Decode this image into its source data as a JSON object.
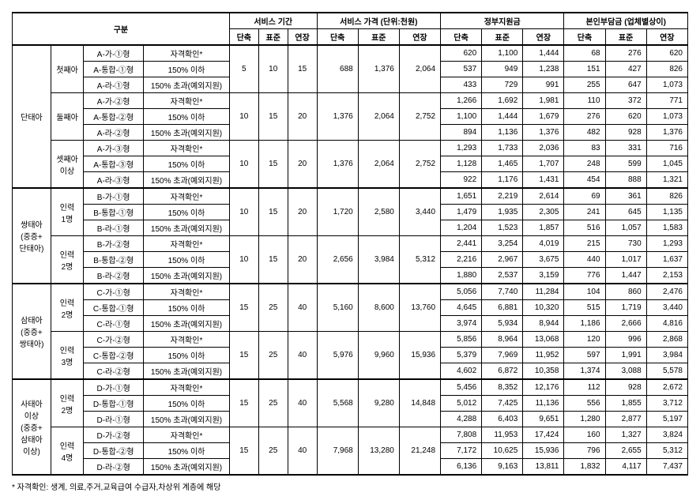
{
  "header": {
    "gubun": "구분",
    "period": "서비스 기간",
    "price": "서비스 가격 (단위:천원)",
    "gov": "정부지원금",
    "self": "본인부담금 (업체별상이)",
    "short": "단축",
    "std": "표준",
    "ext": "연장"
  },
  "cat": {
    "dan": "단태아",
    "ssang": "쌍태아",
    "ssang_sub": "(중증+\n단태아)",
    "sam": "삼태아",
    "sam_sub": "(중증+\n쌍태아)",
    "sa": "사태아\n이상",
    "sa_sub": "(중증+\n삼태아\n이상)"
  },
  "sub": {
    "first": "첫째아",
    "second": "둘째아",
    "third": "셋째아\n이상",
    "p1": "인력\n1명",
    "p2": "인력\n2명",
    "p3": "인력\n3명",
    "p4": "인력\n4명"
  },
  "type": {
    "a1a": "A-가-①형",
    "a1b": "A-통합-①형",
    "a1c": "A-라-①형",
    "a2a": "A-가-②형",
    "a2b": "A-통합-②형",
    "a2c": "A-라-②형",
    "a3a": "A-가-③형",
    "a3b": "A-통합-③형",
    "a3c": "A-라-③형",
    "b1a": "B-가-①형",
    "b1b": "B-통합-①형",
    "b1c": "B-라-①형",
    "b2a": "B-가-②형",
    "b2b": "B-통합-②형",
    "b2c": "B-라-②형",
    "c1a": "C-가-①형",
    "c1b": "C-통합-①형",
    "c1c": "C-라-①형",
    "c2a": "C-가-②형",
    "c2b": "C-통합-②형",
    "c2c": "C-라-②형",
    "d1a": "D-가-①형",
    "d1b": "D-통합-①형",
    "d1c": "D-라-①형",
    "d2a": "D-가-②형",
    "d2b": "D-통합-②형",
    "d2c": "D-라-②형"
  },
  "crit": {
    "qual": "자격확인*",
    "under": "150% 이하",
    "over": "150% 초과(예외지원)"
  },
  "rows": [
    {
      "per": [
        "5",
        "10",
        "15"
      ],
      "price": [
        "688",
        "1,376",
        "2,064"
      ],
      "gov": [
        "620",
        "1,100",
        "1,444"
      ],
      "self": [
        "68",
        "276",
        "620"
      ]
    },
    {
      "gov": [
        "537",
        "949",
        "1,238"
      ],
      "self": [
        "151",
        "427",
        "826"
      ]
    },
    {
      "gov": [
        "433",
        "729",
        "991"
      ],
      "self": [
        "255",
        "647",
        "1,073"
      ]
    },
    {
      "per": [
        "10",
        "15",
        "20"
      ],
      "price": [
        "1,376",
        "2,064",
        "2,752"
      ],
      "gov": [
        "1,266",
        "1,692",
        "1,981"
      ],
      "self": [
        "110",
        "372",
        "771"
      ]
    },
    {
      "gov": [
        "1,100",
        "1,444",
        "1,679"
      ],
      "self": [
        "276",
        "620",
        "1,073"
      ]
    },
    {
      "gov": [
        "894",
        "1,136",
        "1,376"
      ],
      "self": [
        "482",
        "928",
        "1,376"
      ]
    },
    {
      "per": [
        "10",
        "15",
        "20"
      ],
      "price": [
        "1,376",
        "2,064",
        "2,752"
      ],
      "gov": [
        "1,293",
        "1,733",
        "2,036"
      ],
      "self": [
        "83",
        "331",
        "716"
      ]
    },
    {
      "gov": [
        "1,128",
        "1,465",
        "1,707"
      ],
      "self": [
        "248",
        "599",
        "1,045"
      ]
    },
    {
      "gov": [
        "922",
        "1,176",
        "1,431"
      ],
      "self": [
        "454",
        "888",
        "1,321"
      ]
    },
    {
      "per": [
        "10",
        "15",
        "20"
      ],
      "price": [
        "1,720",
        "2,580",
        "3,440"
      ],
      "gov": [
        "1,651",
        "2,219",
        "2,614"
      ],
      "self": [
        "69",
        "361",
        "826"
      ]
    },
    {
      "gov": [
        "1,479",
        "1,935",
        "2,305"
      ],
      "self": [
        "241",
        "645",
        "1,135"
      ]
    },
    {
      "gov": [
        "1,204",
        "1,523",
        "1,857"
      ],
      "self": [
        "516",
        "1,057",
        "1,583"
      ]
    },
    {
      "per": [
        "10",
        "15",
        "20"
      ],
      "price": [
        "2,656",
        "3,984",
        "5,312"
      ],
      "gov": [
        "2,441",
        "3,254",
        "4,019"
      ],
      "self": [
        "215",
        "730",
        "1,293"
      ]
    },
    {
      "gov": [
        "2,216",
        "2,967",
        "3,675"
      ],
      "self": [
        "440",
        "1,017",
        "1,637"
      ]
    },
    {
      "gov": [
        "1,880",
        "2,537",
        "3,159"
      ],
      "self": [
        "776",
        "1,447",
        "2,153"
      ]
    },
    {
      "per": [
        "15",
        "25",
        "40"
      ],
      "price": [
        "5,160",
        "8,600",
        "13,760"
      ],
      "gov": [
        "5,056",
        "7,740",
        "11,284"
      ],
      "self": [
        "104",
        "860",
        "2,476"
      ]
    },
    {
      "gov": [
        "4,645",
        "6,881",
        "10,320"
      ],
      "self": [
        "515",
        "1,719",
        "3,440"
      ]
    },
    {
      "gov": [
        "3,974",
        "5,934",
        "8,944"
      ],
      "self": [
        "1,186",
        "2,666",
        "4,816"
      ]
    },
    {
      "per": [
        "15",
        "25",
        "40"
      ],
      "price": [
        "5,976",
        "9,960",
        "15,936"
      ],
      "gov": [
        "5,856",
        "8,964",
        "13,068"
      ],
      "self": [
        "120",
        "996",
        "2,868"
      ]
    },
    {
      "gov": [
        "5,379",
        "7,969",
        "11,952"
      ],
      "self": [
        "597",
        "1,991",
        "3,984"
      ]
    },
    {
      "gov": [
        "4,602",
        "6,872",
        "10,358"
      ],
      "self": [
        "1,374",
        "3,088",
        "5,578"
      ]
    },
    {
      "per": [
        "15",
        "25",
        "40"
      ],
      "price": [
        "5,568",
        "9,280",
        "14,848"
      ],
      "gov": [
        "5,456",
        "8,352",
        "12,176"
      ],
      "self": [
        "112",
        "928",
        "2,672"
      ]
    },
    {
      "gov": [
        "5,012",
        "7,425",
        "11,136"
      ],
      "self": [
        "556",
        "1,855",
        "3,712"
      ]
    },
    {
      "gov": [
        "4,288",
        "6,403",
        "9,651"
      ],
      "self": [
        "1,280",
        "2,877",
        "5,197"
      ]
    },
    {
      "per": [
        "15",
        "25",
        "40"
      ],
      "price": [
        "7,968",
        "13,280",
        "21,248"
      ],
      "gov": [
        "7,808",
        "11,953",
        "17,424"
      ],
      "self": [
        "160",
        "1,327",
        "3,824"
      ]
    },
    {
      "gov": [
        "7,172",
        "10,625",
        "15,936"
      ],
      "self": [
        "796",
        "2,655",
        "5,312"
      ]
    },
    {
      "gov": [
        "6,136",
        "9,163",
        "13,811"
      ],
      "self": [
        "1,832",
        "4,117",
        "7,437"
      ]
    }
  ],
  "footnote": "* 자격확인: 생계, 의료,주거,교육급여 수급자,차상위 계층에 해당"
}
